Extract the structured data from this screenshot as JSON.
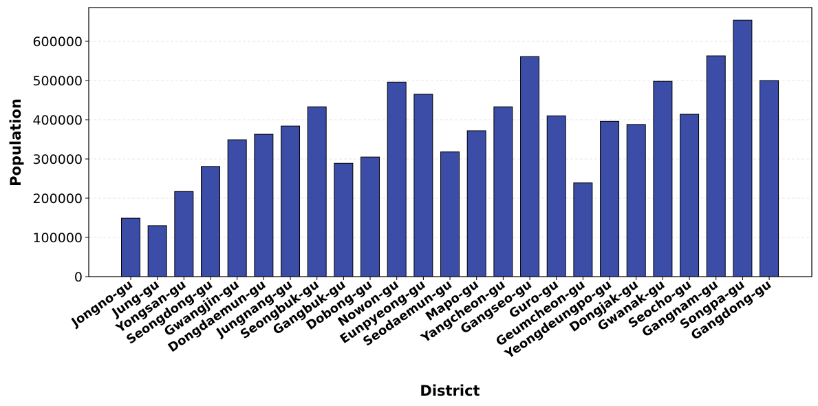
{
  "chart_data": {
    "type": "bar",
    "title": "",
    "xlabel": "District",
    "ylabel": "Population",
    "ylim": [
      0,
      686000
    ],
    "yticks": [
      0,
      100000,
      200000,
      300000,
      400000,
      500000,
      600000
    ],
    "grid": "y-dashed",
    "bar_color": "#3b4da6",
    "categories": [
      "Jongno-gu",
      "Jung-gu",
      "Yongsan-gu",
      "Seongdong-gu",
      "Gwangjin-gu",
      "Dongdaemun-gu",
      "Jungnang-gu",
      "Seongbuk-gu",
      "Gangbuk-gu",
      "Dobong-gu",
      "Nowon-gu",
      "Eunpyeong-gu",
      "Seodaemun-gu",
      "Mapo-gu",
      "Yangcheon-gu",
      "Gangseo-gu",
      "Guro-gu",
      "Geumcheon-gu",
      "Yeongdeungpo-gu",
      "Dongjak-gu",
      "Gwanak-gu",
      "Seocho-gu",
      "Gangnam-gu",
      "Songpa-gu",
      "Gangdong-gu"
    ],
    "values": [
      149000,
      130000,
      217000,
      281000,
      349000,
      363000,
      384000,
      433000,
      289000,
      305000,
      496000,
      465000,
      318000,
      372000,
      433000,
      561000,
      410000,
      239000,
      396000,
      388000,
      498000,
      414000,
      563000,
      654000,
      500000
    ]
  }
}
